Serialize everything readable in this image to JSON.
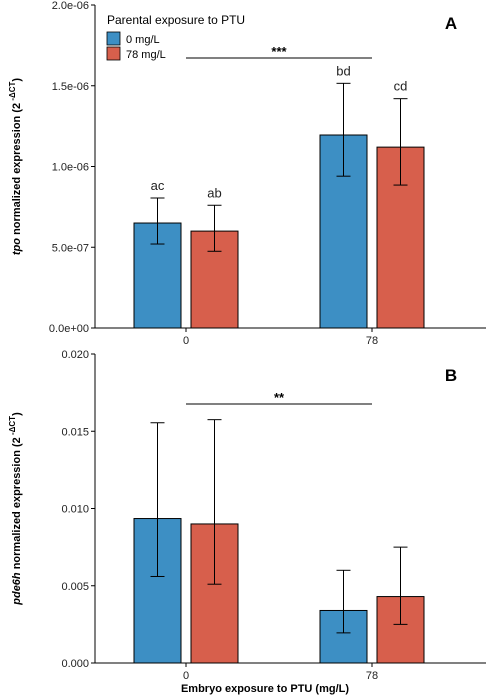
{
  "legend": {
    "title": "Parental exposure to PTU",
    "entries": [
      {
        "label": "0 mg/L",
        "color": "#3d8fc4"
      },
      {
        "label": "78 mg/L",
        "color": "#d75f4c"
      }
    ]
  },
  "xlabel": "Embryo exposure to PTU (mg/L)",
  "chart_data": [
    {
      "type": "bar",
      "panel_label": "A",
      "ylabel_italic": "tpo",
      "ylabel_rest": " normalized expression (2",
      "ylabel_sup": "-ΔCT",
      "ylabel_close": ")",
      "categories": [
        "0",
        "78"
      ],
      "ylim": [
        0,
        2e-06
      ],
      "yticks": [
        0,
        5e-07,
        1e-06,
        1.5e-06,
        2e-06
      ],
      "ytick_labels": [
        "0.0e+00",
        "5.0e-07",
        "1.0e-06",
        "1.5e-06",
        "2.0e-06"
      ],
      "series": [
        {
          "name": "0 mg/L",
          "values": [
            6.5e-07,
            1.195e-06
          ],
          "err_low": [
            5.2e-07,
            9.4e-07
          ],
          "err_high": [
            8.05e-07,
            1.515e-06
          ],
          "letters": [
            "ac",
            "bd"
          ]
        },
        {
          "name": "78 mg/L",
          "values": [
            6e-07,
            1.12e-06
          ],
          "err_low": [
            4.75e-07,
            8.85e-07
          ],
          "err_high": [
            7.6e-07,
            1.42e-06
          ],
          "letters": [
            "ab",
            "cd"
          ]
        }
      ],
      "significance": "***"
    },
    {
      "type": "bar",
      "panel_label": "B",
      "ylabel_italic": "pde6h",
      "ylabel_rest": " normalized expression (2",
      "ylabel_sup": "-ΔCT",
      "ylabel_close": ")",
      "categories": [
        "0",
        "78"
      ],
      "ylim": [
        0,
        0.02
      ],
      "yticks": [
        0,
        0.005,
        0.01,
        0.015,
        0.02
      ],
      "ytick_labels": [
        "0.000",
        "0.005",
        "0.010",
        "0.015",
        "0.020"
      ],
      "series": [
        {
          "name": "0 mg/L",
          "values": [
            0.00935,
            0.0034
          ],
          "err_low": [
            0.0056,
            0.00195
          ],
          "err_high": [
            0.01555,
            0.006
          ],
          "letters": [
            "",
            ""
          ]
        },
        {
          "name": "78 mg/L",
          "values": [
            0.009,
            0.0043
          ],
          "err_low": [
            0.0051,
            0.0025
          ],
          "err_high": [
            0.01575,
            0.0075
          ],
          "letters": [
            "",
            ""
          ]
        }
      ],
      "significance": "**"
    }
  ]
}
